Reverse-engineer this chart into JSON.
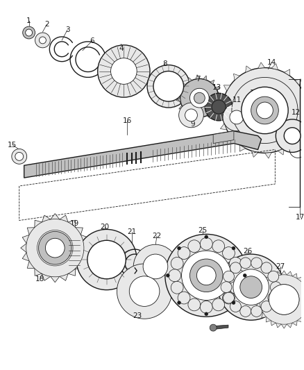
{
  "bg_color": "#ffffff",
  "line_color": "#1a1a1a",
  "fill_light": "#e8e8e8",
  "fill_mid": "#c0c0c0",
  "fill_dark": "#808080",
  "fill_darker": "#505050"
}
